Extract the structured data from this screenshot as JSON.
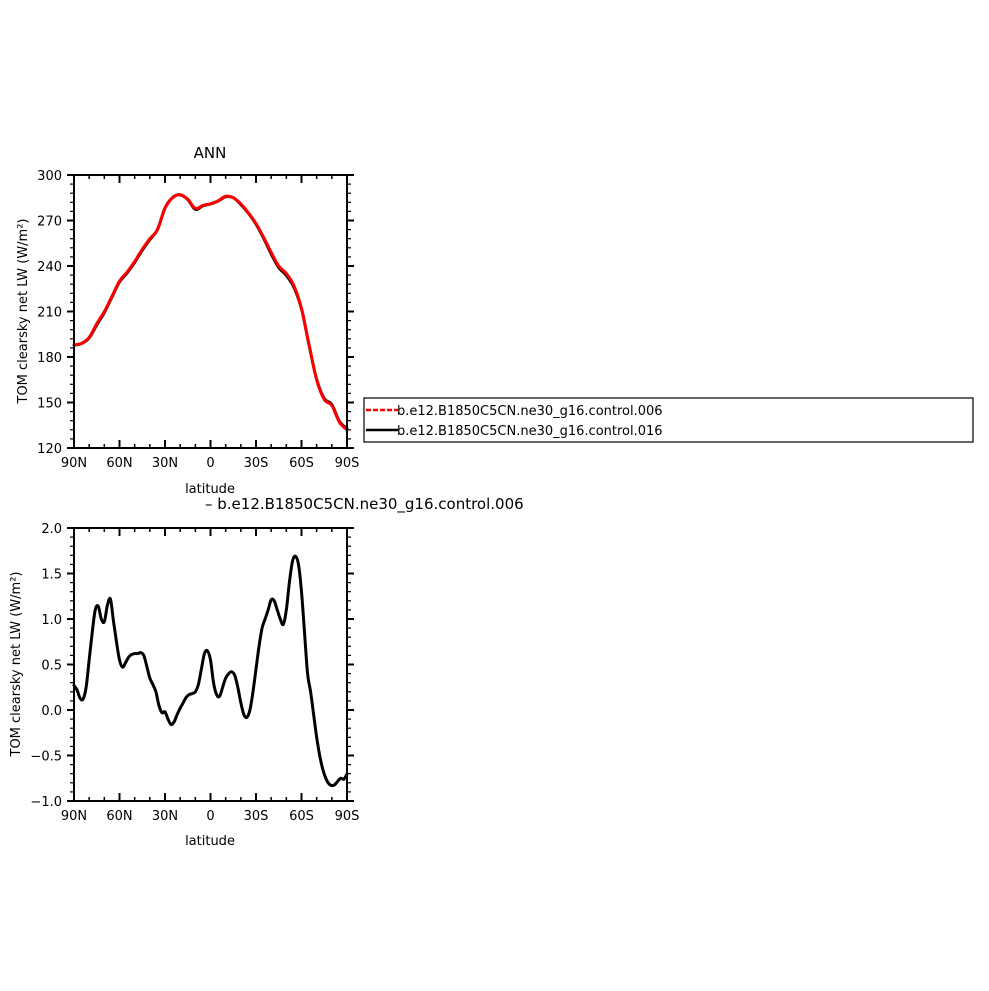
{
  "chart_data": [
    {
      "type": "line",
      "title": "ANN",
      "xlabel": "latitude",
      "ylabel": "TOM clearsky net LW (W/m²)",
      "xlim": [
        90,
        -90
      ],
      "ylim": [
        120,
        300
      ],
      "x_ticks": [
        90,
        60,
        30,
        0,
        -30,
        -60,
        -90
      ],
      "x_tick_labels": [
        "90N",
        "60N",
        "30N",
        "0",
        "30S",
        "60S",
        "90S"
      ],
      "y_ticks": [
        120,
        150,
        180,
        210,
        240,
        270,
        300
      ],
      "y_tick_labels": [
        "120",
        "150",
        "180",
        "210",
        "240",
        "270",
        "300"
      ],
      "x": [
        90,
        85,
        80,
        75,
        70,
        65,
        60,
        55,
        50,
        45,
        40,
        35,
        30,
        25,
        20,
        15,
        10,
        5,
        0,
        -5,
        -10,
        -15,
        -20,
        -25,
        -30,
        -35,
        -40,
        -45,
        -50,
        -55,
        -60,
        -65,
        -70,
        -75,
        -80,
        -85,
        -90
      ],
      "series": [
        {
          "name": "b.e12.B1850C5CN.ne30_g16.control.006",
          "color": "#ff0000",
          "dashed": true,
          "values": [
            188,
            189,
            193,
            202,
            210,
            220,
            230,
            236,
            243,
            251,
            258,
            264,
            278,
            285,
            287,
            284,
            278,
            280,
            281,
            283,
            286,
            285,
            281,
            275,
            268,
            259,
            249,
            240,
            235,
            227,
            212,
            188,
            165,
            152,
            148,
            137,
            132
          ]
        },
        {
          "name": "b.e12.B1850C5CN.ne30_g16.control.016",
          "color": "#000000",
          "dashed": false,
          "values": [
            187.8,
            188.9,
            192.6,
            201.1,
            209.3,
            219.5,
            229.5,
            235.4,
            242.4,
            250.4,
            257.4,
            263.9,
            278.2,
            285.1,
            286.9,
            283.8,
            277.4,
            279.7,
            280.9,
            282.8,
            285.6,
            285.1,
            280.6,
            274.8,
            267.6,
            258.4,
            248.0,
            239.0,
            233.8,
            226.0,
            211.7,
            187.8,
            165.2,
            152.6,
            148.6,
            137.5,
            132.8
          ]
        }
      ],
      "legend": "right"
    },
    {
      "type": "line",
      "title": "– b.e12.B1850C5CN.ne30_g16.control.006",
      "xlabel": "latitude",
      "ylabel": "TOM clearsky net LW (W/m²)",
      "xlim": [
        90,
        -90
      ],
      "ylim": [
        -1.0,
        2.0
      ],
      "x_ticks": [
        90,
        60,
        30,
        0,
        -30,
        -60,
        -90
      ],
      "x_tick_labels": [
        "90N",
        "60N",
        "30N",
        "0",
        "30S",
        "60S",
        "90S"
      ],
      "y_ticks": [
        -1.0,
        -0.5,
        0.0,
        0.5,
        1.0,
        1.5,
        2.0
      ],
      "y_tick_labels": [
        "−1.0",
        "−0.5",
        "0.0",
        "0.5",
        "1.0",
        "1.5",
        "2.0"
      ],
      "x": [
        90,
        88,
        86,
        84,
        82,
        80,
        78,
        76,
        74,
        72,
        70,
        68,
        66,
        64,
        62,
        60,
        58,
        56,
        54,
        52,
        50,
        48,
        46,
        44,
        42,
        40,
        38,
        36,
        34,
        32,
        30,
        28,
        26,
        24,
        22,
        20,
        18,
        16,
        14,
        12,
        10,
        8,
        6,
        4,
        2,
        0,
        -2,
        -4,
        -6,
        -8,
        -10,
        -12,
        -14,
        -16,
        -18,
        -20,
        -22,
        -24,
        -26,
        -28,
        -30,
        -32,
        -34,
        -36,
        -38,
        -40,
        -42,
        -44,
        -46,
        -48,
        -50,
        -52,
        -54,
        -56,
        -58,
        -60,
        -62,
        -64,
        -66,
        -68,
        -70,
        -72,
        -74,
        -76,
        -78,
        -80,
        -82,
        -84,
        -86,
        -88,
        -90
      ],
      "series": [
        {
          "name": "b.e12.B1850C5CN.ne30_g16.control.006",
          "color": "#000000",
          "values": [
            0.27,
            0.22,
            0.13,
            0.12,
            0.25,
            0.55,
            0.85,
            1.1,
            1.14,
            1.0,
            0.97,
            1.15,
            1.22,
            0.98,
            0.75,
            0.55,
            0.47,
            0.52,
            0.58,
            0.61,
            0.62,
            0.62,
            0.63,
            0.6,
            0.48,
            0.35,
            0.28,
            0.2,
            0.05,
            -0.03,
            -0.02,
            -0.1,
            -0.16,
            -0.13,
            -0.05,
            0.02,
            0.08,
            0.14,
            0.17,
            0.18,
            0.2,
            0.28,
            0.45,
            0.62,
            0.65,
            0.55,
            0.3,
            0.17,
            0.15,
            0.25,
            0.35,
            0.4,
            0.42,
            0.38,
            0.25,
            0.08,
            -0.05,
            -0.08,
            0.0,
            0.2,
            0.45,
            0.7,
            0.9,
            1.0,
            1.1,
            1.21,
            1.2,
            1.1,
            1.0,
            0.94,
            1.1,
            1.4,
            1.63,
            1.69,
            1.6,
            1.3,
            0.85,
            0.4,
            0.2,
            -0.05,
            -0.3,
            -0.5,
            -0.65,
            -0.75,
            -0.81,
            -0.83,
            -0.82,
            -0.78,
            -0.75,
            -0.76,
            -0.7
          ]
        }
      ]
    }
  ]
}
